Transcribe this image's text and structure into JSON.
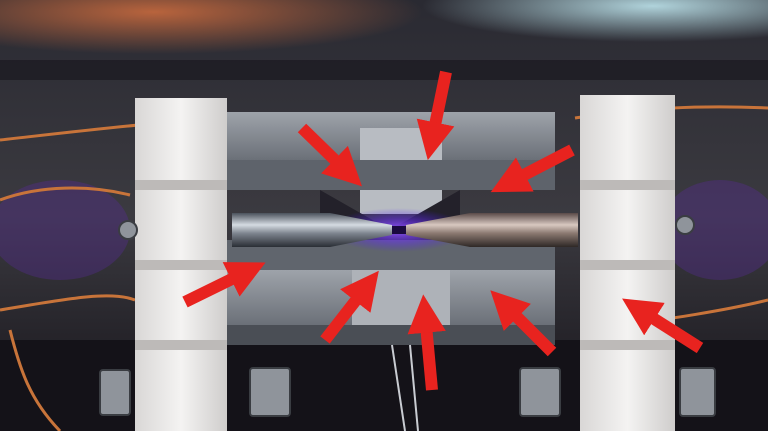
{
  "scene": {
    "subject": "ion-trap-electrodes-with-arrows",
    "accent_colors": {
      "arrow": "#e8231f",
      "glow": "#7a3cff",
      "metal": "#8c9098",
      "ceramic": "#ecebea",
      "copper_wire": "#c8743a"
    }
  }
}
